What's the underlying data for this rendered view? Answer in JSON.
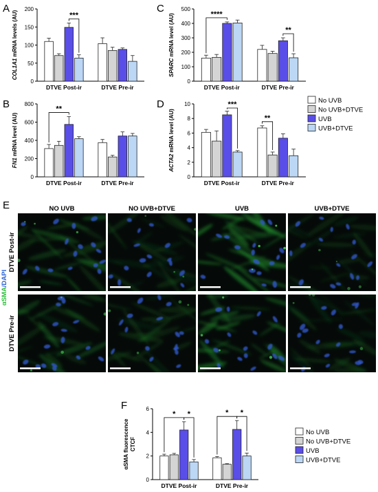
{
  "legend": {
    "entries": [
      {
        "label": "No UVB",
        "color": "#ffffff"
      },
      {
        "label": "No UVB+DTVE",
        "color": "#d4d4d4"
      },
      {
        "label": "UVB",
        "color": "#5a4ee8"
      },
      {
        "label": "UVB+DTVE",
        "color": "#bcd7f5"
      }
    ]
  },
  "chart_data": [
    {
      "panel": "A",
      "type": "bar",
      "ylabel": "COL1A1 mRNA levels (AU)",
      "ylabel_italic": "COL1A1",
      "ylim": [
        0,
        200
      ],
      "yticks": [
        0,
        50,
        100,
        150,
        200
      ],
      "categories": [
        "DTVE Post-ir",
        "DTVE Pre-ir"
      ],
      "series": [
        {
          "name": "No UVB",
          "values": [
            110,
            104
          ],
          "errors": [
            9,
            16
          ]
        },
        {
          "name": "No UVB+DTVE",
          "values": [
            71,
            85
          ],
          "errors": [
            5,
            9
          ]
        },
        {
          "name": "UVB",
          "values": [
            149,
            88
          ],
          "errors": [
            12,
            4
          ]
        },
        {
          "name": "UVB+DTVE",
          "values": [
            64,
            55
          ],
          "errors": [
            9,
            16
          ]
        }
      ],
      "significance": [
        {
          "group": 0,
          "from": 2,
          "to": 3,
          "label": "***"
        }
      ]
    },
    {
      "panel": "B",
      "type": "bar",
      "ylabel": "FN1 mRNA level (AU)",
      "ylabel_italic": "FN1",
      "ylim": [
        0,
        800
      ],
      "yticks": [
        0,
        200,
        400,
        600,
        800
      ],
      "categories": [
        "DTVE Post-ir",
        "DTVE Pre-ir"
      ],
      "series": [
        {
          "name": "No UVB",
          "values": [
            310,
            375
          ],
          "errors": [
            45,
            35
          ]
        },
        {
          "name": "No UVB+DTVE",
          "values": [
            345,
            218
          ],
          "errors": [
            45,
            18
          ]
        },
        {
          "name": "UVB",
          "values": [
            575,
            448
          ],
          "errors": [
            85,
            45
          ]
        },
        {
          "name": "UVB+DTVE",
          "values": [
            418,
            448
          ],
          "errors": [
            22,
            28
          ]
        }
      ],
      "significance": [
        {
          "group": 0,
          "from": 0,
          "to": 2,
          "label": "**"
        }
      ]
    },
    {
      "panel": "C",
      "type": "bar",
      "ylabel": "SPARC mRNA level (AU)",
      "ylabel_italic": "SPARC",
      "ylim": [
        0,
        500
      ],
      "yticks": [
        0,
        100,
        200,
        300,
        400,
        500
      ],
      "categories": [
        "DTVE Post-ir",
        "DTVE Pre-ir"
      ],
      "series": [
        {
          "name": "No UVB",
          "values": [
            160,
            220
          ],
          "errors": [
            20,
            28
          ]
        },
        {
          "name": "No UVB+DTVE",
          "values": [
            165,
            192
          ],
          "errors": [
            20,
            15
          ]
        },
        {
          "name": "UVB",
          "values": [
            400,
            280
          ],
          "errors": [
            10,
            20
          ]
        },
        {
          "name": "UVB+DTVE",
          "values": [
            403,
            162
          ],
          "errors": [
            20,
            28
          ]
        }
      ],
      "significance": [
        {
          "group": 0,
          "from": 0,
          "to": 2,
          "label": "****"
        },
        {
          "group": 1,
          "from": 2,
          "to": 3,
          "label": "**"
        }
      ]
    },
    {
      "panel": "D",
      "type": "bar",
      "ylabel": "ACTA2 mRNA level (AU)",
      "ylabel_italic": "ACTA2",
      "ylim": [
        0,
        10
      ],
      "yticks": [
        0,
        2,
        4,
        6,
        8,
        10
      ],
      "categories": [
        "DTVE Post-ir",
        "DTVE Pre-ir"
      ],
      "series": [
        {
          "name": "No UVB",
          "values": [
            6.1,
            6.7
          ],
          "errors": [
            0.4,
            0.3
          ]
        },
        {
          "name": "No UVB+DTVE",
          "values": [
            4.9,
            3.0
          ],
          "errors": [
            1.4,
            0.4
          ]
        },
        {
          "name": "UVB",
          "values": [
            8.5,
            5.3
          ],
          "errors": [
            0.5,
            0.6
          ]
        },
        {
          "name": "UVB+DTVE",
          "values": [
            3.4,
            2.9
          ],
          "errors": [
            0.2,
            0.9
          ]
        }
      ],
      "significance": [
        {
          "group": 0,
          "from": 2,
          "to": 3,
          "label": "***"
        },
        {
          "group": 1,
          "from": 0,
          "to": 1,
          "label": "**"
        }
      ]
    },
    {
      "panel": "F",
      "type": "bar",
      "ylabel_lines": [
        "αSMA fluorescence",
        "CTCF"
      ],
      "ylim": [
        0,
        6
      ],
      "yticks": [
        0,
        2,
        4,
        6
      ],
      "categories": [
        "DTVE Post-ir",
        "DTVE Pre-ir"
      ],
      "series": [
        {
          "name": "No UVB",
          "values": [
            2.0,
            1.85
          ],
          "errors": [
            0.15,
            0.1
          ]
        },
        {
          "name": "No UVB+DTVE",
          "values": [
            2.1,
            1.3
          ],
          "errors": [
            0.12,
            0.05
          ]
        },
        {
          "name": "UVB",
          "values": [
            4.2,
            4.25
          ],
          "errors": [
            0.7,
            0.75
          ]
        },
        {
          "name": "UVB+DTVE",
          "values": [
            1.5,
            2.0
          ],
          "errors": [
            0.2,
            0.25
          ]
        }
      ],
      "significance": [
        {
          "group": 0,
          "from": 0,
          "to": 2,
          "label": "*"
        },
        {
          "group": 0,
          "from": 2,
          "to": 3,
          "label": "*"
        },
        {
          "group": 1,
          "from": 0,
          "to": 2,
          "label": "*"
        },
        {
          "group": 1,
          "from": 2,
          "to": 3,
          "label": "*"
        }
      ]
    }
  ],
  "microscopy": {
    "panel": "E",
    "columns": [
      "NO UVB",
      "NO UVB+DTVE",
      "UVB",
      "UVB+DTVE"
    ],
    "rows": [
      "DTVE Post-ir",
      "DTVE Pre-ir"
    ],
    "stain_label": {
      "green": "αSMA",
      "sep": "/",
      "blue": "DAPI"
    },
    "green": "#2bbf3a",
    "blue": "#2a63d6"
  },
  "panel_letters": {
    "A": "A",
    "B": "B",
    "C": "C",
    "D": "D",
    "E": "E",
    "F": "F"
  }
}
